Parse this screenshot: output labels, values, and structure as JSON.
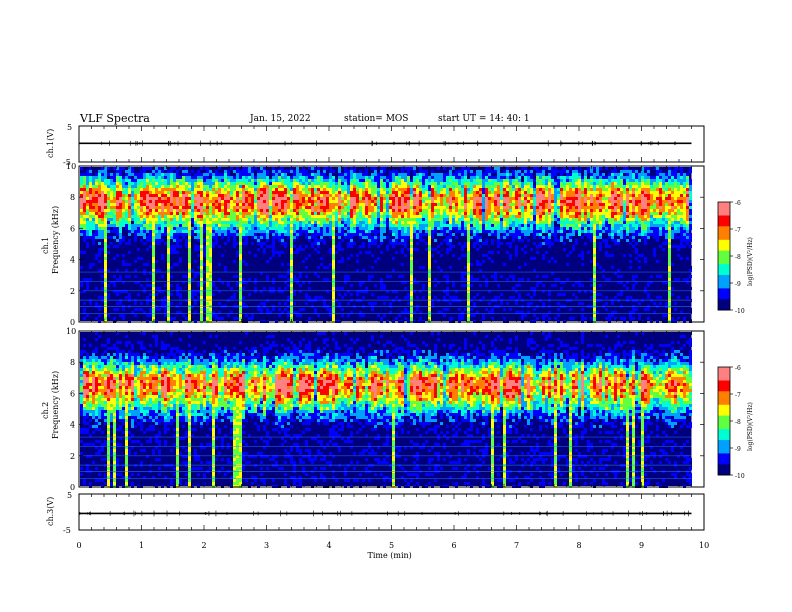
{
  "header": {
    "title": "VLF Spectra",
    "date": "Jan. 15, 2022",
    "station": "station= MOS",
    "start": "start  UT =   14: 40: 1"
  },
  "chart_data": [
    {
      "type": "line",
      "panel": "ch1-waveform",
      "ylabel": "ch.1(V)",
      "yticks": [
        "5",
        "-5"
      ],
      "ylim": [
        -5,
        5
      ],
      "series": [
        {
          "values": [
            0.2,
            0.1,
            0.2,
            0.2
          ]
        }
      ],
      "xlim": [
        0,
        10
      ]
    },
    {
      "type": "heatmap",
      "panel": "ch1-spectrogram",
      "ylabel_1": "ch.1",
      "ylabel_2": "Frequency (kHz)",
      "yticks": [
        "0",
        "2",
        "4",
        "6",
        "8",
        "10"
      ],
      "ylim": [
        0,
        10
      ],
      "xlim": [
        0,
        9.8
      ],
      "band_center_khz": 8,
      "colorbar": {
        "label": "log(PSD)(V²/Hz)",
        "ticks": [
          "-6",
          "-7",
          "-8",
          "-9",
          "-10"
        ],
        "range": [
          -10,
          -6
        ]
      }
    },
    {
      "type": "heatmap",
      "panel": "ch2-spectrogram",
      "ylabel_1": "ch.2",
      "ylabel_2": "Frequency (kHz)",
      "yticks": [
        "0",
        "2",
        "4",
        "6",
        "8",
        "10"
      ],
      "ylim": [
        0,
        10
      ],
      "xlim": [
        0,
        9.8
      ],
      "band_center_khz": 6.8,
      "colorbar": {
        "label": "log(PSD)(V²/Hz)",
        "ticks": [
          "-6",
          "-7",
          "-8",
          "-9",
          "-10"
        ],
        "range": [
          -10,
          -6
        ]
      }
    },
    {
      "type": "line",
      "panel": "ch3-waveform",
      "ylabel": "ch.3(V)",
      "yticks": [
        "5",
        "-5"
      ],
      "ylim": [
        -5,
        5
      ],
      "series": [
        {
          "values": [
            -0.4,
            -0.4,
            -0.4,
            -0.4
          ]
        }
      ],
      "xlim": [
        0,
        10
      ]
    }
  ],
  "xaxis": {
    "label": "Time (min)",
    "ticks": [
      "0",
      "1",
      "2",
      "3",
      "4",
      "5",
      "6",
      "7",
      "8",
      "9",
      "10"
    ],
    "range": [
      0,
      10
    ]
  },
  "colors": {
    "ramp": [
      "#00007f",
      "#0000ff",
      "#00a0ff",
      "#00ffd0",
      "#60ff40",
      "#ffff00",
      "#ff8000",
      "#ff0000",
      "#ff8080",
      "#ffffff"
    ]
  }
}
